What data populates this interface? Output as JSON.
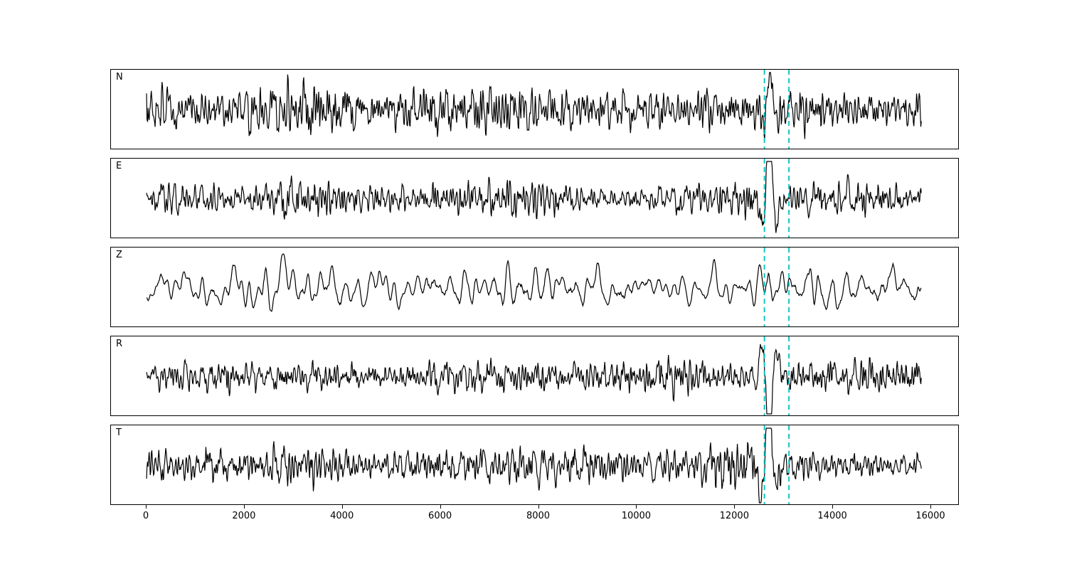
{
  "chart_data": {
    "type": "line",
    "title": "",
    "description": "Five stacked seismogram waveform panels (components N, E, Z, R, T) of band-limited noise-like traces in black, with two vertical dashed cyan marker lines indicating a pick window near x=12600 and x=13100. Components E, R and T show a sharp high-amplitude spike at approximately x=12700; Z is lower-frequency; no y-axis ticks are shown.",
    "xlabel": "",
    "ylabel": "",
    "xlim": [
      -725,
      16580
    ],
    "x_data_range": [
      0,
      15800
    ],
    "x_ticks": [
      0,
      2000,
      4000,
      6000,
      8000,
      10000,
      12000,
      14000,
      16000
    ],
    "x_tick_labels": [
      "0",
      "2000",
      "4000",
      "6000",
      "8000",
      "10000",
      "12000",
      "14000",
      "16000"
    ],
    "vlines": [
      12600,
      13100
    ],
    "vline_color": "#00bfbf",
    "trace_color": "#000000",
    "grid": false,
    "legend": false,
    "n_points": 1450,
    "panels": [
      {
        "label": "N",
        "seed": 101,
        "smooth": 2,
        "amp": 0.44,
        "spike": {
          "x": 12720,
          "amp": 1.35,
          "sign": 1
        },
        "character": "high-frequency noise, large amplitude"
      },
      {
        "label": "E",
        "seed": 202,
        "smooth": 2,
        "amp": 0.3,
        "spike": {
          "x": 12700,
          "amp": 3.2,
          "sign": 1
        },
        "character": "high-frequency noise with sharp positive spike at ~12700"
      },
      {
        "label": "Z",
        "seed": 303,
        "smooth": 7,
        "amp": 0.42,
        "spike": null,
        "character": "lower-frequency noise, broad swings"
      },
      {
        "label": "R",
        "seed": 404,
        "smooth": 2,
        "amp": 0.3,
        "spike": {
          "x": 12700,
          "amp": 3.0,
          "sign": -1
        },
        "character": "high-frequency noise with sharp negative spike at ~12700"
      },
      {
        "label": "T",
        "seed": 505,
        "smooth": 2,
        "amp": 0.32,
        "spike": {
          "x": 12690,
          "amp": 2.9,
          "sign": 1
        },
        "character": "high-frequency noise with sharp positive spike at ~12690"
      }
    ]
  }
}
